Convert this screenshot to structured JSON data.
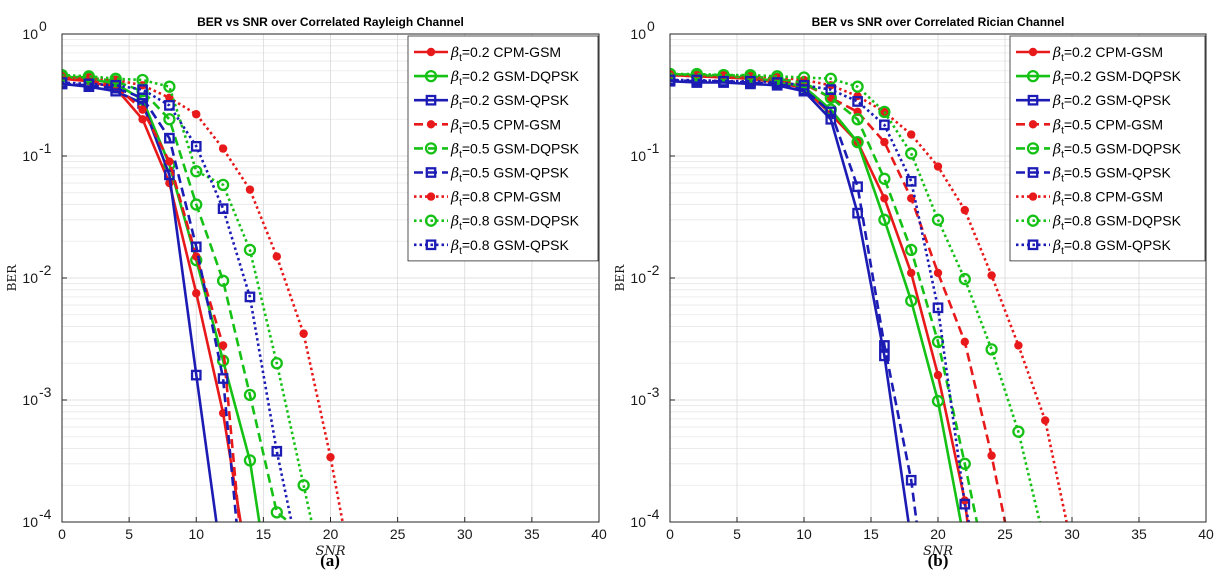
{
  "chart_data": [
    {
      "type": "line",
      "panel": "a",
      "caption": "(a)",
      "title": "BER vs SNR over Correlated Rayleigh Channel",
      "xlabel": "SNR",
      "ylabel": "BER",
      "xlim": [
        0,
        40
      ],
      "ylim": [
        0.0001,
        1
      ],
      "yscale": "log",
      "grid": true,
      "legend_position": "top-right",
      "x_ticks": [
        0,
        5,
        10,
        15,
        20,
        25,
        30,
        35,
        40
      ],
      "y_ticks": [
        {
          "value": 0.0001,
          "base": "10",
          "exp": "-4"
        },
        {
          "value": 0.001,
          "base": "10",
          "exp": "-3"
        },
        {
          "value": 0.01,
          "base": "10",
          "exp": "-2"
        },
        {
          "value": 0.1,
          "base": "10",
          "exp": "-1"
        },
        {
          "value": 1,
          "base": "10",
          "exp": "0"
        }
      ],
      "series": [
        {
          "name": "=0.2 CPM-GSM",
          "beta": "β",
          "sub": "t",
          "color": "#e8191b",
          "dash": "solid",
          "marker": "dot",
          "x": [
            0,
            2,
            4,
            6,
            8,
            10,
            12,
            13.3
          ],
          "y": [
            0.43,
            0.41,
            0.36,
            0.2,
            0.06,
            0.0075,
            0.00078,
            0.0001
          ]
        },
        {
          "name": "=0.2 GSM-DQPSK",
          "beta": "β",
          "sub": "t",
          "color": "#16c116",
          "dash": "solid",
          "marker": "circle",
          "x": [
            0,
            2,
            4,
            6,
            8,
            10,
            12,
            14,
            14.7
          ],
          "y": [
            0.45,
            0.43,
            0.39,
            0.29,
            0.085,
            0.014,
            0.0021,
            0.00032,
            0.0001
          ]
        },
        {
          "name": "=0.2 GSM-QPSK",
          "beta": "β",
          "sub": "t",
          "color": "#1c1cb4",
          "dash": "solid",
          "marker": "square",
          "x": [
            0,
            2,
            4,
            6,
            8,
            10,
            11.5
          ],
          "y": [
            0.39,
            0.37,
            0.34,
            0.27,
            0.07,
            0.0016,
            0.0001
          ]
        },
        {
          "name": "=0.5 CPM-GSM",
          "beta": "β",
          "sub": "t",
          "color": "#e8191b",
          "dash": "dash",
          "marker": "dot",
          "x": [
            0,
            2,
            4,
            6,
            8,
            10,
            12,
            13.2
          ],
          "y": [
            0.44,
            0.42,
            0.37,
            0.24,
            0.09,
            0.015,
            0.0028,
            0.0001
          ]
        },
        {
          "name": "=0.5 GSM-DQPSK",
          "beta": "β",
          "sub": "t",
          "color": "#16c116",
          "dash": "dash",
          "marker": "circle",
          "x": [
            0,
            2,
            4,
            6,
            8,
            10,
            12,
            14,
            16,
            16.9
          ],
          "y": [
            0.45,
            0.44,
            0.41,
            0.34,
            0.2,
            0.04,
            0.0095,
            0.0011,
            0.00012,
            0.0001
          ]
        },
        {
          "name": "=0.5 GSM-QPSK",
          "beta": "β",
          "sub": "t",
          "color": "#1c1cb4",
          "dash": "dash",
          "marker": "square",
          "x": [
            0,
            2,
            4,
            6,
            8,
            10,
            12,
            13
          ],
          "y": [
            0.39,
            0.38,
            0.36,
            0.3,
            0.14,
            0.018,
            0.0015,
            0.0001
          ]
        },
        {
          "name": "=0.8 CPM-GSM",
          "beta": "β",
          "sub": "t",
          "color": "#e8191b",
          "dash": "dot",
          "marker": "dot",
          "x": [
            0,
            2,
            4,
            6,
            8,
            10,
            12,
            14,
            16,
            18,
            20,
            20.9
          ],
          "y": [
            0.45,
            0.44,
            0.42,
            0.38,
            0.3,
            0.22,
            0.115,
            0.053,
            0.015,
            0.0035,
            0.00034,
            0.0001
          ]
        },
        {
          "name": "=0.8 GSM-DQPSK",
          "beta": "β",
          "sub": "t",
          "color": "#16c116",
          "dash": "dot",
          "marker": "circle",
          "x": [
            0,
            2,
            4,
            6,
            8,
            10,
            12,
            14,
            16,
            18,
            18.6
          ],
          "y": [
            0.46,
            0.45,
            0.43,
            0.42,
            0.37,
            0.075,
            0.058,
            0.017,
            0.002,
            0.0002,
            0.0001
          ]
        },
        {
          "name": "=0.8 GSM-QPSK",
          "beta": "β",
          "sub": "t",
          "color": "#1c1cb4",
          "dash": "dot",
          "marker": "square",
          "x": [
            0,
            2,
            4,
            6,
            8,
            10,
            12,
            14,
            16,
            17.1
          ],
          "y": [
            0.4,
            0.39,
            0.38,
            0.35,
            0.26,
            0.12,
            0.037,
            0.007,
            0.00038,
            0.0001
          ]
        }
      ]
    },
    {
      "type": "line",
      "panel": "b",
      "caption": "(b)",
      "title": "BER vs SNR over Correlated Rician Channel",
      "xlabel": "SNR",
      "ylabel": "BER",
      "xlim": [
        0,
        40
      ],
      "ylim": [
        0.0001,
        1
      ],
      "yscale": "log",
      "grid": true,
      "legend_position": "top-right",
      "x_ticks": [
        0,
        5,
        10,
        15,
        20,
        25,
        30,
        35,
        40
      ],
      "y_ticks": [
        {
          "value": 0.0001,
          "base": "10",
          "exp": "-4"
        },
        {
          "value": 0.001,
          "base": "10",
          "exp": "-3"
        },
        {
          "value": 0.01,
          "base": "10",
          "exp": "-2"
        },
        {
          "value": 0.1,
          "base": "10",
          "exp": "-1"
        },
        {
          "value": 1,
          "base": "10",
          "exp": "0"
        }
      ],
      "series": [
        {
          "name": "=0.2 CPM-GSM",
          "beta": "β",
          "sub": "t",
          "color": "#e8191b",
          "dash": "solid",
          "marker": "dot",
          "x": [
            0,
            2,
            4,
            6,
            8,
            10,
            12,
            14,
            16,
            18,
            20,
            22,
            22.2
          ],
          "y": [
            0.46,
            0.45,
            0.44,
            0.43,
            0.4,
            0.36,
            0.22,
            0.13,
            0.045,
            0.011,
            0.0016,
            0.00015,
            0.0001
          ]
        },
        {
          "name": "=0.2 GSM-DQPSK",
          "beta": "β",
          "sub": "t",
          "color": "#16c116",
          "dash": "solid",
          "marker": "circle",
          "x": [
            0,
            2,
            4,
            6,
            8,
            10,
            12,
            14,
            16,
            18,
            20,
            21.7
          ],
          "y": [
            0.47,
            0.46,
            0.45,
            0.44,
            0.41,
            0.37,
            0.24,
            0.13,
            0.03,
            0.0065,
            0.00098,
            0.0001
          ]
        },
        {
          "name": "=0.2 GSM-QPSK",
          "beta": "β",
          "sub": "t",
          "color": "#1c1cb4",
          "dash": "solid",
          "marker": "square",
          "x": [
            0,
            2,
            4,
            6,
            8,
            10,
            12,
            14,
            16,
            17.8
          ],
          "y": [
            0.41,
            0.4,
            0.4,
            0.39,
            0.38,
            0.34,
            0.2,
            0.034,
            0.0023,
            0.0001
          ]
        },
        {
          "name": "=0.5 CPM-GSM",
          "beta": "β",
          "sub": "t",
          "color": "#e8191b",
          "dash": "dash",
          "marker": "dot",
          "x": [
            0,
            2,
            4,
            6,
            8,
            10,
            12,
            14,
            16,
            18,
            20,
            22,
            24,
            25
          ],
          "y": [
            0.46,
            0.45,
            0.45,
            0.44,
            0.42,
            0.39,
            0.3,
            0.23,
            0.13,
            0.045,
            0.011,
            0.003,
            0.00035,
            0.0001
          ]
        },
        {
          "name": "=0.5 GSM-DQPSK",
          "beta": "β",
          "sub": "t",
          "color": "#16c116",
          "dash": "dash",
          "marker": "circle",
          "x": [
            0,
            2,
            4,
            6,
            8,
            10,
            12,
            14,
            16,
            18,
            20,
            22,
            22.9
          ],
          "y": [
            0.47,
            0.46,
            0.46,
            0.45,
            0.43,
            0.4,
            0.3,
            0.2,
            0.065,
            0.017,
            0.003,
            0.0003,
            0.0001
          ]
        },
        {
          "name": "=0.5 GSM-QPSK",
          "beta": "β",
          "sub": "t",
          "color": "#1c1cb4",
          "dash": "dash",
          "marker": "square",
          "x": [
            0,
            2,
            4,
            6,
            8,
            10,
            12,
            14,
            16,
            18,
            18.4
          ],
          "y": [
            0.42,
            0.41,
            0.41,
            0.4,
            0.39,
            0.35,
            0.23,
            0.056,
            0.0028,
            0.00022,
            0.0001
          ]
        },
        {
          "name": "=0.8 CPM-GSM",
          "beta": "β",
          "sub": "t",
          "color": "#e8191b",
          "dash": "dot",
          "marker": "dot",
          "x": [
            0,
            2,
            4,
            6,
            8,
            10,
            12,
            14,
            16,
            18,
            20,
            22,
            24,
            26,
            28,
            29.6
          ],
          "y": [
            0.47,
            0.46,
            0.46,
            0.45,
            0.44,
            0.42,
            0.38,
            0.31,
            0.23,
            0.15,
            0.082,
            0.036,
            0.0105,
            0.0028,
            0.00068,
            0.0001
          ]
        },
        {
          "name": "=0.8 GSM-DQPSK",
          "beta": "β",
          "sub": "t",
          "color": "#16c116",
          "dash": "dot",
          "marker": "circle",
          "x": [
            0,
            2,
            4,
            6,
            8,
            10,
            12,
            14,
            16,
            18,
            20,
            22,
            24,
            26,
            27.6
          ],
          "y": [
            0.47,
            0.47,
            0.46,
            0.46,
            0.45,
            0.44,
            0.43,
            0.37,
            0.23,
            0.105,
            0.03,
            0.0098,
            0.0026,
            0.00055,
            0.0001
          ]
        },
        {
          "name": "=0.8 GSM-QPSK",
          "beta": "β",
          "sub": "t",
          "color": "#1c1cb4",
          "dash": "dot",
          "marker": "square",
          "x": [
            0,
            2,
            4,
            6,
            8,
            10,
            12,
            14,
            16,
            18,
            20,
            22,
            22.3
          ],
          "y": [
            0.42,
            0.42,
            0.41,
            0.41,
            0.4,
            0.38,
            0.35,
            0.28,
            0.18,
            0.062,
            0.0057,
            0.00014,
            0.0001
          ]
        }
      ]
    }
  ]
}
